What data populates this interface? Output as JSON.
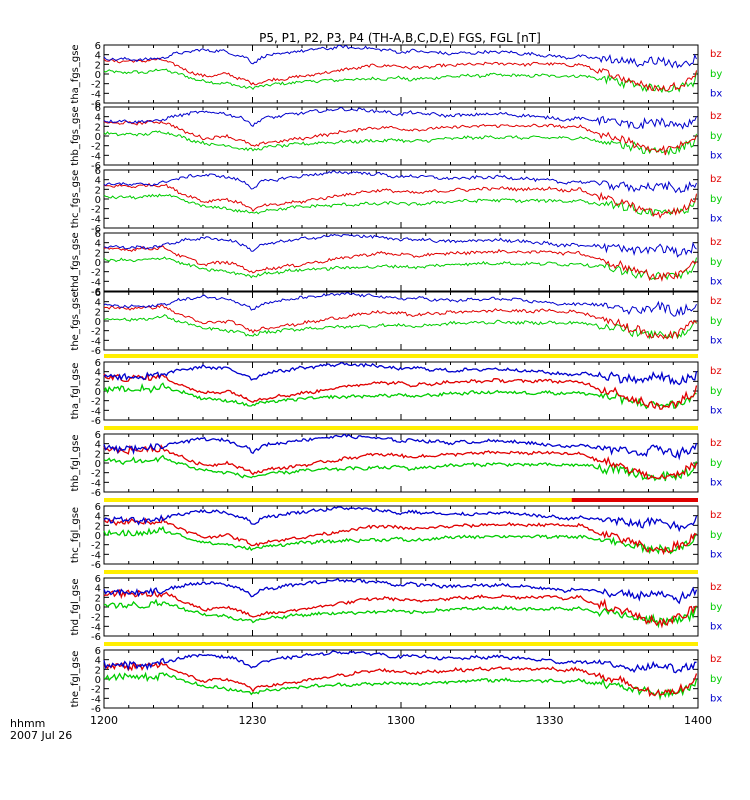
{
  "title": "P5, P1, P2, P3, P4 (TH-A,B,C,D,E) FGS, FGL [nT]",
  "footer": {
    "time_label": "hhmm",
    "date_label": "2007 Jul 26"
  },
  "colors": {
    "bz": "#e00000",
    "by": "#00cc00",
    "bx": "#0000cc",
    "bar_yellow": "#ffee00",
    "bar_red": "#e00000"
  },
  "chart_data": {
    "type": "line",
    "title": "P5, P1, P2, P3, P4 (TH-A,B,C,D,E) FGS, FGL [nT]",
    "x_tick_labels": [
      "1200",
      "1230",
      "1300",
      "1330",
      "1400"
    ],
    "x_ticks_minutes": [
      0,
      30,
      60,
      90,
      120
    ],
    "xlim_minutes": [
      0,
      120
    ],
    "y_tick_labels": [
      "6",
      "4",
      "2",
      "0",
      "-2",
      "-4",
      "-6"
    ],
    "ylim": [
      -6,
      6
    ],
    "series_names": [
      "bz",
      "by",
      "bx"
    ],
    "panels": [
      {
        "name": "tha_fgs_gse",
        "label": "tha_fgs_gse",
        "status_bar": null
      },
      {
        "name": "thb_fgs_gse",
        "label": "thb_fgs_gse",
        "status_bar": null
      },
      {
        "name": "thc_fgs_gse",
        "label": "thc_fgs_gse",
        "status_bar": null
      },
      {
        "name": "thd_fgs_gse",
        "label": "thd_fgs_gse",
        "status_bar": null
      },
      {
        "name": "the_fgs_gse",
        "label": "the_fgs_gse",
        "status_bar": null
      },
      {
        "name": "tha_fgl_gse",
        "label": "tha_fgl_gse",
        "status_bar": {
          "yellow_minutes": [
            0,
            120
          ],
          "red_minutes": null
        }
      },
      {
        "name": "thb_fgl_gse",
        "label": "thb_fgl_gse",
        "status_bar": {
          "yellow_minutes": [
            0,
            120
          ],
          "red_minutes": null
        }
      },
      {
        "name": "thc_fgl_gse",
        "label": "thc_fgl_gse",
        "status_bar": {
          "yellow_minutes": [
            0,
            120
          ],
          "red_minutes": [
            94.5,
            120
          ]
        }
      },
      {
        "name": "thd_fgl_gse",
        "label": "thd_fgl_gse",
        "status_bar": {
          "yellow_minutes": [
            0,
            120
          ],
          "red_minutes": null
        }
      },
      {
        "name": "the_fgl_gse",
        "label": "the_fgl_gse",
        "status_bar": {
          "yellow_minutes": [
            0,
            120
          ],
          "red_minutes": null
        }
      }
    ],
    "series": [
      {
        "name": "bx",
        "points": [
          [
            0,
            3.2
          ],
          [
            5,
            3.0
          ],
          [
            9,
            3.0
          ],
          [
            12,
            3.4
          ],
          [
            15,
            4.3
          ],
          [
            20,
            5.0
          ],
          [
            25,
            4.6
          ],
          [
            29,
            3.2
          ],
          [
            30,
            2.2
          ],
          [
            32,
            3.6
          ],
          [
            40,
            4.8
          ],
          [
            48,
            5.6
          ],
          [
            55,
            5.2
          ],
          [
            60,
            4.5
          ],
          [
            62,
            4.8
          ],
          [
            70,
            4.2
          ],
          [
            80,
            4.6
          ],
          [
            85,
            4.2
          ],
          [
            90,
            3.8
          ],
          [
            93,
            3.4
          ],
          [
            96,
            3.6
          ],
          [
            100,
            3.3
          ],
          [
            104,
            2.8
          ],
          [
            108,
            2.2
          ],
          [
            112,
            3.0
          ],
          [
            116,
            1.8
          ],
          [
            119,
            2.8
          ],
          [
            120,
            3.5
          ]
        ]
      },
      {
        "name": "by",
        "points": [
          [
            0,
            0.5
          ],
          [
            5,
            0.3
          ],
          [
            9,
            0.4
          ],
          [
            12,
            1.0
          ],
          [
            15,
            0.0
          ],
          [
            20,
            -1.5
          ],
          [
            25,
            -2.0
          ],
          [
            29,
            -2.8
          ],
          [
            30,
            -3.0
          ],
          [
            32,
            -2.4
          ],
          [
            40,
            -1.6
          ],
          [
            48,
            -1.2
          ],
          [
            55,
            -1.0
          ],
          [
            60,
            -0.8
          ],
          [
            62,
            -1.2
          ],
          [
            70,
            -0.5
          ],
          [
            80,
            -0.2
          ],
          [
            85,
            -0.4
          ],
          [
            90,
            -0.3
          ],
          [
            93,
            -0.5
          ],
          [
            96,
            -0.3
          ],
          [
            100,
            -1.0
          ],
          [
            104,
            -1.5
          ],
          [
            108,
            -2.5
          ],
          [
            112,
            -3.0
          ],
          [
            116,
            -2.8
          ],
          [
            119,
            -1.5
          ],
          [
            120,
            0.5
          ]
        ]
      },
      {
        "name": "bz",
        "points": [
          [
            0,
            2.8
          ],
          [
            5,
            2.6
          ],
          [
            9,
            2.8
          ],
          [
            12,
            3.0
          ],
          [
            15,
            1.5
          ],
          [
            20,
            -0.5
          ],
          [
            25,
            0.0
          ],
          [
            29,
            -1.5
          ],
          [
            30,
            -2.2
          ],
          [
            32,
            -1.5
          ],
          [
            40,
            -0.5
          ],
          [
            48,
            0.8
          ],
          [
            55,
            1.8
          ],
          [
            60,
            1.6
          ],
          [
            62,
            1.2
          ],
          [
            70,
            1.8
          ],
          [
            80,
            2.2
          ],
          [
            85,
            2.0
          ],
          [
            90,
            2.2
          ],
          [
            93,
            1.8
          ],
          [
            96,
            2.0
          ],
          [
            100,
            0.5
          ],
          [
            104,
            -0.5
          ],
          [
            108,
            -2.0
          ],
          [
            112,
            -3.2
          ],
          [
            116,
            -2.4
          ],
          [
            119,
            -0.5
          ],
          [
            120,
            1.0
          ]
        ]
      }
    ]
  }
}
